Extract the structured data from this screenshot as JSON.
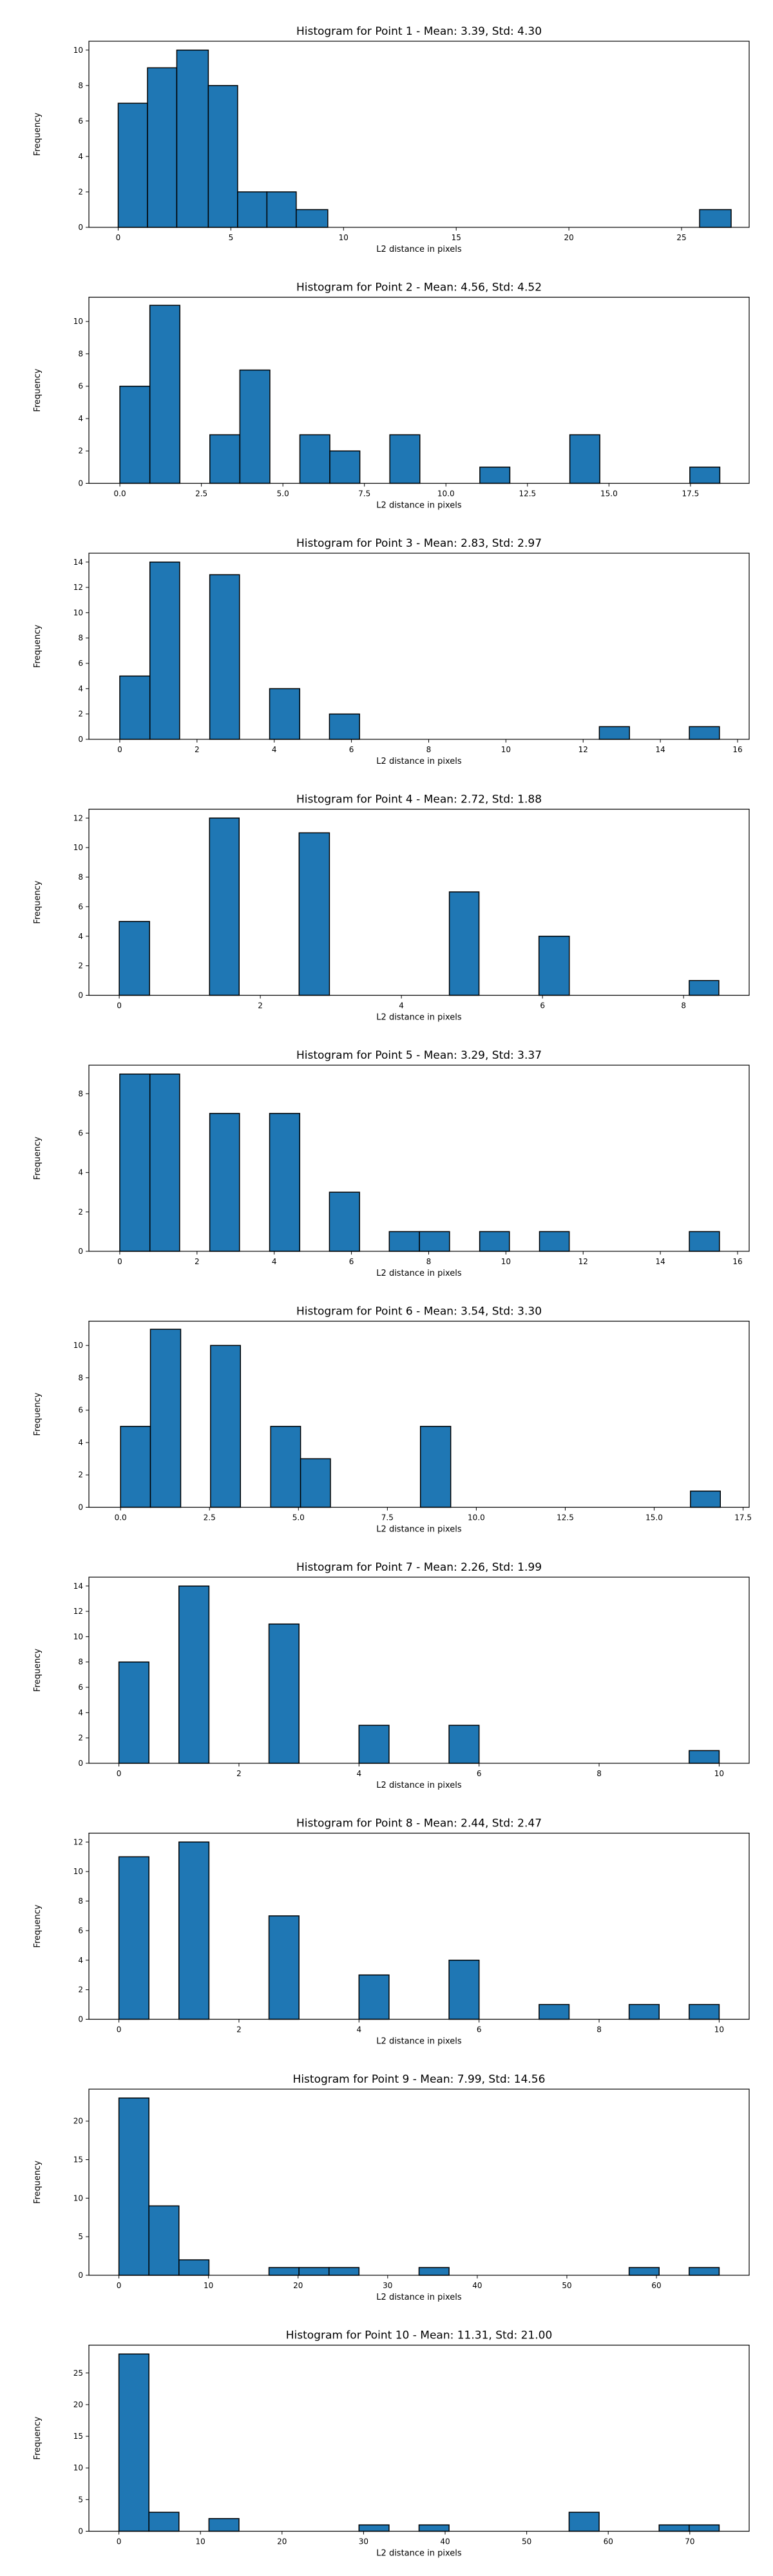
{
  "chart_data": [
    {
      "type": "bar",
      "title": "Histogram for Point 1 - Mean: 3.39, Std: 4.30",
      "xlabel": "L2 distance in pixels",
      "ylabel": "Frequency",
      "xlim": [
        -1.3,
        28.0
      ],
      "ylim": [
        0,
        10.5
      ],
      "xticks": [
        0,
        5,
        10,
        15,
        20,
        25
      ],
      "xtick_labels": [
        "0",
        "5",
        "10",
        "15",
        "20",
        "25"
      ],
      "yticks": [
        0,
        2,
        4,
        6,
        8,
        10
      ],
      "bins": [
        {
          "x0": 0.0,
          "x1": 1.3,
          "count": 7
        },
        {
          "x0": 1.3,
          "x1": 2.6,
          "count": 9
        },
        {
          "x0": 2.6,
          "x1": 4.0,
          "count": 10
        },
        {
          "x0": 4.0,
          "x1": 5.3,
          "count": 8
        },
        {
          "x0": 5.3,
          "x1": 6.6,
          "count": 2
        },
        {
          "x0": 6.6,
          "x1": 7.9,
          "count": 2
        },
        {
          "x0": 7.9,
          "x1": 9.3,
          "count": 1
        },
        {
          "x0": 25.8,
          "x1": 27.2,
          "count": 1
        }
      ],
      "grid": false,
      "color": "#1f77b4"
    },
    {
      "type": "bar",
      "title": "Histogram for Point 2 - Mean: 4.56, Std: 4.52",
      "xlabel": "L2 distance in pixels",
      "ylabel": "Frequency",
      "xlim": [
        -0.95,
        19.3
      ],
      "ylim": [
        0,
        11.5
      ],
      "xticks": [
        0,
        2.5,
        5,
        7.5,
        10,
        12.5,
        15,
        17.5
      ],
      "xtick_labels": [
        "0.0",
        "2.5",
        "5.0",
        "7.5",
        "10.0",
        "12.5",
        "15.0",
        "17.5"
      ],
      "yticks": [
        0,
        2,
        4,
        6,
        8,
        10
      ],
      "bins": [
        {
          "x0": 0.0,
          "x1": 0.92,
          "count": 6
        },
        {
          "x0": 0.92,
          "x1": 1.84,
          "count": 11
        },
        {
          "x0": 2.76,
          "x1": 3.68,
          "count": 3
        },
        {
          "x0": 3.68,
          "x1": 4.6,
          "count": 7
        },
        {
          "x0": 5.52,
          "x1": 6.44,
          "count": 3
        },
        {
          "x0": 6.44,
          "x1": 7.36,
          "count": 2
        },
        {
          "x0": 8.28,
          "x1": 9.2,
          "count": 3
        },
        {
          "x0": 11.04,
          "x1": 11.96,
          "count": 1
        },
        {
          "x0": 13.8,
          "x1": 14.72,
          "count": 3
        },
        {
          "x0": 17.48,
          "x1": 18.4,
          "count": 1
        }
      ],
      "grid": false,
      "color": "#1f77b4"
    },
    {
      "type": "bar",
      "title": "Histogram for Point 3 - Mean: 2.83, Std: 2.97",
      "xlabel": "L2 distance in pixels",
      "ylabel": "Frequency",
      "xlim": [
        -0.8,
        16.3
      ],
      "ylim": [
        0,
        14.7
      ],
      "xticks": [
        0,
        2,
        4,
        6,
        8,
        10,
        12,
        14,
        16
      ],
      "xtick_labels": [
        "0",
        "2",
        "4",
        "6",
        "8",
        "10",
        "12",
        "14",
        "16"
      ],
      "yticks": [
        0,
        2,
        4,
        6,
        8,
        10,
        12,
        14
      ],
      "bins": [
        {
          "x0": 0.0,
          "x1": 0.78,
          "count": 5
        },
        {
          "x0": 0.78,
          "x1": 1.55,
          "count": 14
        },
        {
          "x0": 2.33,
          "x1": 3.1,
          "count": 13
        },
        {
          "x0": 3.88,
          "x1": 4.66,
          "count": 4
        },
        {
          "x0": 5.43,
          "x1": 6.21,
          "count": 2
        },
        {
          "x0": 12.42,
          "x1": 13.2,
          "count": 1
        },
        {
          "x0": 14.75,
          "x1": 15.53,
          "count": 1
        }
      ],
      "grid": false,
      "color": "#1f77b4"
    },
    {
      "type": "bar",
      "title": "Histogram for Point 4 - Mean: 2.72, Std: 1.88",
      "xlabel": "L2 distance in pixels",
      "ylabel": "Frequency",
      "xlim": [
        -0.43,
        8.93
      ],
      "ylim": [
        0,
        12.6
      ],
      "xticks": [
        0,
        2,
        4,
        6,
        8
      ],
      "xtick_labels": [
        "0",
        "2",
        "4",
        "6",
        "8"
      ],
      "yticks": [
        0,
        2,
        4,
        6,
        8,
        10,
        12
      ],
      "bins": [
        {
          "x0": 0.0,
          "x1": 0.43,
          "count": 5
        },
        {
          "x0": 1.28,
          "x1": 1.7,
          "count": 12
        },
        {
          "x0": 2.55,
          "x1": 2.98,
          "count": 11
        },
        {
          "x0": 4.68,
          "x1": 5.1,
          "count": 7
        },
        {
          "x0": 5.95,
          "x1": 6.38,
          "count": 4
        },
        {
          "x0": 8.08,
          "x1": 8.5,
          "count": 1
        }
      ],
      "grid": false,
      "color": "#1f77b4"
    },
    {
      "type": "bar",
      "title": "Histogram for Point 5 - Mean: 3.29, Std: 3.37",
      "xlabel": "L2 distance in pixels",
      "ylabel": "Frequency",
      "xlim": [
        -0.8,
        16.3
      ],
      "ylim": [
        0,
        9.45
      ],
      "xticks": [
        0,
        2,
        4,
        6,
        8,
        10,
        12,
        14,
        16
      ],
      "xtick_labels": [
        "0",
        "2",
        "4",
        "6",
        "8",
        "10",
        "12",
        "14",
        "16"
      ],
      "yticks": [
        0,
        2,
        4,
        6,
        8
      ],
      "bins": [
        {
          "x0": 0.0,
          "x1": 0.78,
          "count": 9
        },
        {
          "x0": 0.78,
          "x1": 1.55,
          "count": 9
        },
        {
          "x0": 2.33,
          "x1": 3.1,
          "count": 7
        },
        {
          "x0": 3.88,
          "x1": 4.66,
          "count": 7
        },
        {
          "x0": 5.43,
          "x1": 6.21,
          "count": 3
        },
        {
          "x0": 6.98,
          "x1": 7.76,
          "count": 1
        },
        {
          "x0": 7.76,
          "x1": 8.54,
          "count": 1
        },
        {
          "x0": 9.32,
          "x1": 10.09,
          "count": 1
        },
        {
          "x0": 10.87,
          "x1": 11.64,
          "count": 1
        },
        {
          "x0": 14.75,
          "x1": 15.53,
          "count": 1
        }
      ],
      "grid": false,
      "color": "#1f77b4"
    },
    {
      "type": "bar",
      "title": "Histogram for Point 6 - Mean: 3.54, Std: 3.30",
      "xlabel": "L2 distance in pixels",
      "ylabel": "Frequency",
      "xlim": [
        -0.89,
        17.67
      ],
      "ylim": [
        0,
        11.5
      ],
      "xticks": [
        0,
        2.5,
        5,
        7.5,
        10,
        12.5,
        15,
        17.5
      ],
      "xtick_labels": [
        "0.0",
        "2.5",
        "5.0",
        "7.5",
        "10.0",
        "12.5",
        "15.0",
        "17.5"
      ],
      "yticks": [
        0,
        2,
        4,
        6,
        8,
        10
      ],
      "bins": [
        {
          "x0": 0.0,
          "x1": 0.84,
          "count": 5
        },
        {
          "x0": 0.84,
          "x1": 1.69,
          "count": 11
        },
        {
          "x0": 2.53,
          "x1": 3.37,
          "count": 10
        },
        {
          "x0": 4.22,
          "x1": 5.06,
          "count": 5
        },
        {
          "x0": 5.06,
          "x1": 5.9,
          "count": 3
        },
        {
          "x0": 8.43,
          "x1": 9.28,
          "count": 5
        },
        {
          "x0": 16.02,
          "x1": 16.86,
          "count": 1
        }
      ],
      "grid": false,
      "color": "#1f77b4"
    },
    {
      "type": "bar",
      "title": "Histogram for Point 7 - Mean: 2.26, Std: 1.99",
      "xlabel": "L2 distance in pixels",
      "ylabel": "Frequency",
      "xlim": [
        -0.5,
        10.5
      ],
      "ylim": [
        0,
        14.7
      ],
      "xticks": [
        0,
        2,
        4,
        6,
        8,
        10
      ],
      "xtick_labels": [
        "0",
        "2",
        "4",
        "6",
        "8",
        "10"
      ],
      "yticks": [
        0,
        2,
        4,
        6,
        8,
        10,
        12,
        14
      ],
      "bins": [
        {
          "x0": 0.0,
          "x1": 0.5,
          "count": 8
        },
        {
          "x0": 1.0,
          "x1": 1.5,
          "count": 14
        },
        {
          "x0": 2.5,
          "x1": 3.0,
          "count": 11
        },
        {
          "x0": 4.0,
          "x1": 4.5,
          "count": 3
        },
        {
          "x0": 5.5,
          "x1": 6.0,
          "count": 3
        },
        {
          "x0": 9.5,
          "x1": 10.0,
          "count": 1
        }
      ],
      "grid": false,
      "color": "#1f77b4"
    },
    {
      "type": "bar",
      "title": "Histogram for Point 8 - Mean: 2.44, Std: 2.47",
      "xlabel": "L2 distance in pixels",
      "ylabel": "Frequency",
      "xlim": [
        -0.5,
        10.5
      ],
      "ylim": [
        0,
        12.6
      ],
      "xticks": [
        0,
        2,
        4,
        6,
        8,
        10
      ],
      "xtick_labels": [
        "0",
        "2",
        "4",
        "6",
        "8",
        "10"
      ],
      "yticks": [
        0,
        2,
        4,
        6,
        8,
        10,
        12
      ],
      "bins": [
        {
          "x0": 0.0,
          "x1": 0.5,
          "count": 11
        },
        {
          "x0": 1.0,
          "x1": 1.5,
          "count": 12
        },
        {
          "x0": 2.5,
          "x1": 3.0,
          "count": 7
        },
        {
          "x0": 4.0,
          "x1": 4.5,
          "count": 3
        },
        {
          "x0": 5.5,
          "x1": 6.0,
          "count": 4
        },
        {
          "x0": 7.0,
          "x1": 7.5,
          "count": 1
        },
        {
          "x0": 8.5,
          "x1": 9.0,
          "count": 1
        },
        {
          "x0": 9.5,
          "x1": 10.0,
          "count": 1
        }
      ],
      "grid": false,
      "color": "#1f77b4"
    },
    {
      "type": "bar",
      "title": "Histogram for Point 9 - Mean: 7.99, Std: 14.56",
      "xlabel": "L2 distance in pixels",
      "ylabel": "Frequency",
      "xlim": [
        -3.35,
        70.35
      ],
      "ylim": [
        0,
        24.15
      ],
      "xticks": [
        0,
        10,
        20,
        30,
        40,
        50,
        60
      ],
      "xtick_labels": [
        "0",
        "10",
        "20",
        "30",
        "40",
        "50",
        "60"
      ],
      "yticks": [
        0,
        5,
        10,
        15,
        20
      ],
      "bins": [
        {
          "x0": 0.0,
          "x1": 3.35,
          "count": 23
        },
        {
          "x0": 3.35,
          "x1": 6.7,
          "count": 9
        },
        {
          "x0": 6.7,
          "x1": 10.05,
          "count": 2
        },
        {
          "x0": 16.75,
          "x1": 20.1,
          "count": 1
        },
        {
          "x0": 20.1,
          "x1": 23.45,
          "count": 1
        },
        {
          "x0": 23.45,
          "x1": 26.8,
          "count": 1
        },
        {
          "x0": 33.5,
          "x1": 36.85,
          "count": 1
        },
        {
          "x0": 56.95,
          "x1": 60.3,
          "count": 1
        },
        {
          "x0": 63.65,
          "x1": 67.0,
          "count": 1
        }
      ],
      "grid": false,
      "color": "#1f77b4"
    },
    {
      "type": "bar",
      "title": "Histogram for Point 10 - Mean: 11.31, Std: 21.00",
      "xlabel": "L2 distance in pixels",
      "ylabel": "Frequency",
      "xlim": [
        -3.68,
        77.28
      ],
      "ylim": [
        0,
        29.4
      ],
      "xticks": [
        0,
        10,
        20,
        30,
        40,
        50,
        60,
        70
      ],
      "xtick_labels": [
        "0",
        "10",
        "20",
        "30",
        "40",
        "50",
        "60",
        "70"
      ],
      "yticks": [
        0,
        5,
        10,
        15,
        20,
        25
      ],
      "bins": [
        {
          "x0": 0.0,
          "x1": 3.68,
          "count": 28
        },
        {
          "x0": 3.68,
          "x1": 7.36,
          "count": 3
        },
        {
          "x0": 11.04,
          "x1": 14.72,
          "count": 2
        },
        {
          "x0": 29.44,
          "x1": 33.12,
          "count": 1
        },
        {
          "x0": 36.8,
          "x1": 40.48,
          "count": 1
        },
        {
          "x0": 55.2,
          "x1": 58.88,
          "count": 3
        },
        {
          "x0": 66.24,
          "x1": 69.92,
          "count": 1
        },
        {
          "x0": 69.92,
          "x1": 73.6,
          "count": 1
        }
      ],
      "grid": false,
      "color": "#1f77b4"
    }
  ]
}
